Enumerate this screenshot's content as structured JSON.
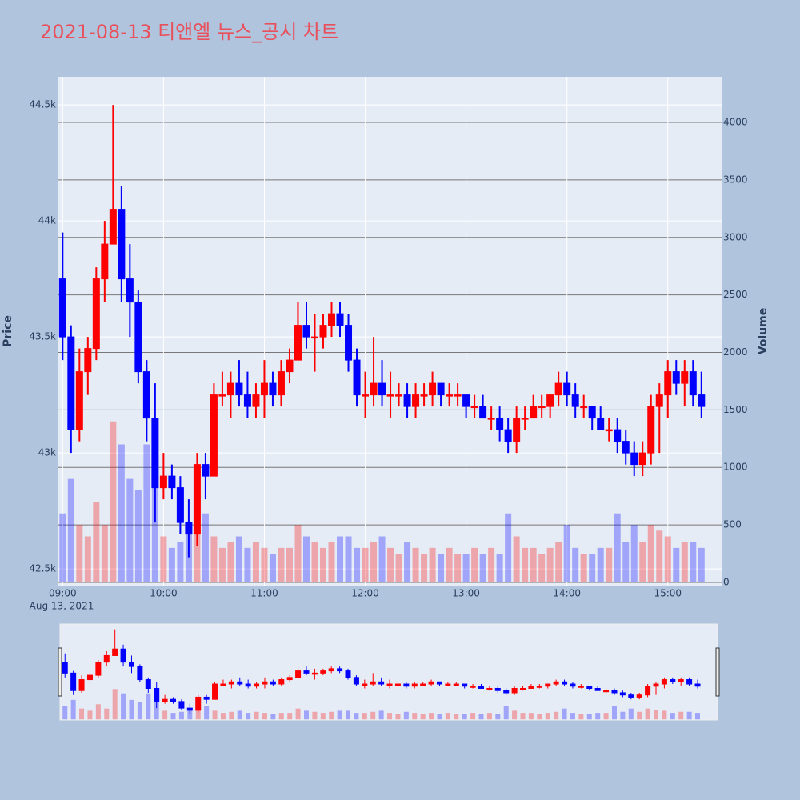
{
  "chart_data": {
    "type": "candlestick",
    "title": "2021-08-13 티앤엘 뉴스_공시 차트",
    "y_title": "Price",
    "y2_title": "Volume",
    "x_date_label": "Aug 13, 2021",
    "x": [
      "09:00",
      "09:05",
      "09:10",
      "09:15",
      "09:20",
      "09:25",
      "09:30",
      "09:35",
      "09:40",
      "09:45",
      "09:50",
      "09:55",
      "10:00",
      "10:05",
      "10:10",
      "10:15",
      "10:20",
      "10:25",
      "10:30",
      "10:35",
      "10:40",
      "10:45",
      "10:50",
      "10:55",
      "11:00",
      "11:05",
      "11:10",
      "11:15",
      "11:20",
      "11:25",
      "11:30",
      "11:35",
      "11:40",
      "11:45",
      "11:50",
      "11:55",
      "12:00",
      "12:05",
      "12:10",
      "12:15",
      "12:20",
      "12:25",
      "12:30",
      "12:35",
      "12:40",
      "12:45",
      "12:50",
      "12:55",
      "13:00",
      "13:05",
      "13:10",
      "13:15",
      "13:20",
      "13:25",
      "13:30",
      "13:35",
      "13:40",
      "13:45",
      "13:50",
      "13:55",
      "14:00",
      "14:05",
      "14:10",
      "14:15",
      "14:20",
      "14:25",
      "14:30",
      "14:35",
      "14:40",
      "14:45",
      "14:50",
      "14:55",
      "15:00",
      "15:05",
      "15:10",
      "15:15",
      "15:20"
    ],
    "open": [
      43750,
      43500,
      43100,
      43350,
      43450,
      43750,
      43900,
      44050,
      43750,
      43650,
      43350,
      43150,
      42850,
      42900,
      42850,
      42700,
      42650,
      42950,
      42900,
      43250,
      43250,
      43300,
      43250,
      43200,
      43250,
      43300,
      43250,
      43350,
      43400,
      43550,
      43500,
      43500,
      43550,
      43600,
      43550,
      43400,
      43250,
      43250,
      43300,
      43250,
      43250,
      43250,
      43200,
      43250,
      43250,
      43300,
      43250,
      43250,
      43250,
      43200,
      43200,
      43150,
      43150,
      43100,
      43050,
      43150,
      43150,
      43200,
      43200,
      43250,
      43300,
      43250,
      43200,
      43200,
      43150,
      43100,
      43100,
      43050,
      43000,
      42950,
      43000,
      43200,
      43250,
      43350,
      43300,
      43350,
      43250
    ],
    "high": [
      43950,
      43550,
      43450,
      43500,
      43800,
      44000,
      44500,
      44150,
      43900,
      43700,
      43400,
      43300,
      43000,
      42950,
      42900,
      42800,
      43000,
      43000,
      43300,
      43350,
      43350,
      43400,
      43350,
      43300,
      43400,
      43350,
      43400,
      43450,
      43650,
      43650,
      43600,
      43600,
      43650,
      43650,
      43600,
      43450,
      43350,
      43500,
      43400,
      43350,
      43300,
      43300,
      43300,
      43300,
      43350,
      43300,
      43300,
      43300,
      43250,
      43250,
      43250,
      43200,
      43200,
      43150,
      43200,
      43200,
      43250,
      43250,
      43250,
      43350,
      43350,
      43300,
      43250,
      43200,
      43200,
      43150,
      43150,
      43100,
      43050,
      43050,
      43250,
      43300,
      43400,
      43400,
      43400,
      43400,
      43350
    ],
    "low": [
      43400,
      43000,
      43050,
      43250,
      43400,
      43650,
      43900,
      43650,
      43500,
      43300,
      43050,
      42700,
      42800,
      42800,
      42650,
      42550,
      42600,
      42800,
      42900,
      43200,
      43150,
      43200,
      43150,
      43150,
      43150,
      43200,
      43200,
      43300,
      43400,
      43450,
      43350,
      43450,
      43500,
      43500,
      43350,
      43200,
      43150,
      43200,
      43200,
      43150,
      43200,
      43150,
      43150,
      43200,
      43200,
      43200,
      43200,
      43200,
      43150,
      43150,
      43150,
      43100,
      43050,
      43000,
      43000,
      43100,
      43150,
      43150,
      43150,
      43200,
      43200,
      43150,
      43150,
      43100,
      43100,
      43050,
      43000,
      42950,
      42900,
      42900,
      42950,
      43000,
      43150,
      43250,
      43200,
      43200,
      43150
    ],
    "close": [
      43500,
      43100,
      43350,
      43450,
      43750,
      43900,
      44050,
      43750,
      43650,
      43350,
      43150,
      42850,
      42900,
      42850,
      42700,
      42650,
      42950,
      42900,
      43250,
      43250,
      43300,
      43250,
      43200,
      43250,
      43300,
      43250,
      43350,
      43400,
      43550,
      43500,
      43500,
      43550,
      43600,
      43550,
      43400,
      43250,
      43250,
      43300,
      43250,
      43250,
      43250,
      43200,
      43250,
      43250,
      43300,
      43250,
      43250,
      43250,
      43200,
      43200,
      43150,
      43150,
      43100,
      43050,
      43150,
      43150,
      43200,
      43200,
      43250,
      43300,
      43250,
      43200,
      43200,
      43150,
      43100,
      43100,
      43050,
      43000,
      42950,
      43000,
      43200,
      43250,
      43350,
      43300,
      43350,
      43250,
      43200
    ],
    "volume": [
      600,
      900,
      500,
      400,
      700,
      500,
      1400,
      1200,
      900,
      800,
      1200,
      1000,
      400,
      300,
      350,
      500,
      700,
      600,
      400,
      300,
      350,
      400,
      300,
      350,
      300,
      250,
      300,
      300,
      500,
      400,
      350,
      300,
      350,
      400,
      400,
      300,
      300,
      350,
      400,
      300,
      250,
      350,
      300,
      250,
      300,
      250,
      300,
      250,
      250,
      300,
      250,
      300,
      250,
      600,
      400,
      300,
      300,
      250,
      300,
      350,
      500,
      300,
      250,
      250,
      300,
      300,
      600,
      350,
      500,
      350,
      500,
      450,
      400,
      300,
      350,
      350,
      300
    ],
    "increasing_color": "#ff0000",
    "decreasing_color": "#0000ff",
    "xlim": [
      "08:57",
      "15:32"
    ],
    "xticks": [
      "09:00",
      "10:00",
      "11:00",
      "12:00",
      "13:00",
      "14:00",
      "15:00"
    ],
    "ylim": [
      42428,
      44621
    ],
    "yticks": [
      {
        "value": 42500,
        "label": "42.5k"
      },
      {
        "value": 43000,
        "label": "43k"
      },
      {
        "value": 43500,
        "label": "43.5k"
      },
      {
        "value": 44000,
        "label": "44k"
      },
      {
        "value": 44500,
        "label": "44.5k"
      }
    ],
    "y2lim": [
      -28,
      4397
    ],
    "y2ticks": [
      0,
      500,
      1000,
      1500,
      2000,
      2500,
      3000,
      3500,
      4000
    ],
    "grid": true,
    "rangeslider": true
  }
}
